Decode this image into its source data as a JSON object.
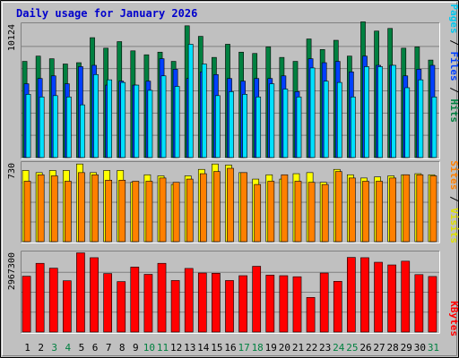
{
  "title": "Daily usage for January 2026",
  "colors": {
    "background": "#c0c0c0",
    "plot_background": "#c0c0c0",
    "title": "#0000ff",
    "hits": "#008040",
    "files": "#0040ff",
    "pages": "#00e0ff",
    "visits": "#ffff00",
    "sites": "#ff8000",
    "kbytes": "#ff0000",
    "weekend_day": "#008040",
    "weekday": "#000000"
  },
  "right_labels": {
    "top": {
      "pages": "Pages",
      "files": "Files",
      "hits": "Hits",
      "sep": " / "
    },
    "middle": {
      "sites": "Sites",
      "visits": "Visits",
      "sep": " / "
    },
    "bottom": {
      "kbytes": "KBytes"
    }
  },
  "chart_data": [
    {
      "type": "bar",
      "name": "top",
      "ymax_label": "10124",
      "ylim": [
        0,
        10124
      ],
      "categories": [
        "1",
        "2",
        "3",
        "4",
        "5",
        "6",
        "7",
        "8",
        "9",
        "10",
        "11",
        "12",
        "13",
        "14",
        "15",
        "16",
        "17",
        "18",
        "19",
        "20",
        "21",
        "22",
        "23",
        "24",
        "25",
        "26",
        "27",
        "28",
        "29",
        "30",
        "31"
      ],
      "weekend_days": [
        3,
        4,
        10,
        11,
        17,
        18,
        24,
        25,
        31
      ],
      "series": [
        {
          "name": "Hits",
          "values": [
            7300,
            7700,
            7500,
            7100,
            7200,
            9100,
            8300,
            8800,
            8100,
            7800,
            8000,
            7300,
            10000,
            9200,
            7600,
            8600,
            8000,
            7900,
            8400,
            7600,
            7300,
            9000,
            8200,
            8900,
            7700,
            10300,
            9600,
            9800,
            8300,
            8400,
            7400
          ]
        },
        {
          "name": "Files",
          "values": [
            5600,
            6000,
            6200,
            5600,
            6900,
            7000,
            5500,
            5800,
            5500,
            5800,
            7500,
            6700,
            6000,
            6500,
            6300,
            6000,
            5800,
            6000,
            6000,
            6200,
            5000,
            7500,
            7200,
            7300,
            6500,
            7700,
            7000,
            7000,
            6200,
            6700,
            7000
          ]
        },
        {
          "name": "Pages",
          "values": [
            4800,
            4600,
            4700,
            4600,
            4000,
            6300,
            5900,
            5700,
            5500,
            5100,
            6200,
            5400,
            8600,
            7100,
            4700,
            5000,
            4800,
            4600,
            5600,
            5200,
            4600,
            6800,
            5800,
            5700,
            4600,
            6900,
            6900,
            7000,
            5300,
            5900,
            4600
          ]
        }
      ]
    },
    {
      "type": "bar",
      "name": "middle",
      "ymax_label": "730",
      "ylim": [
        0,
        730
      ],
      "categories": [
        "1",
        "2",
        "3",
        "4",
        "5",
        "6",
        "7",
        "8",
        "9",
        "10",
        "11",
        "12",
        "13",
        "14",
        "15",
        "16",
        "17",
        "18",
        "19",
        "20",
        "21",
        "22",
        "23",
        "24",
        "25",
        "26",
        "27",
        "28",
        "29",
        "30",
        "31"
      ],
      "series": [
        {
          "name": "Visits",
          "values": [
            660,
            640,
            660,
            660,
            720,
            640,
            660,
            660,
            550,
            620,
            610,
            530,
            610,
            670,
            720,
            710,
            640,
            580,
            620,
            580,
            630,
            640,
            550,
            670,
            620,
            590,
            600,
            610,
            620,
            630,
            620
          ]
        },
        {
          "name": "Sites",
          "values": [
            560,
            620,
            610,
            560,
            640,
            620,
            570,
            570,
            560,
            560,
            590,
            550,
            580,
            630,
            650,
            680,
            640,
            530,
            560,
            620,
            560,
            550,
            530,
            650,
            590,
            560,
            560,
            590,
            620,
            620,
            610
          ]
        }
      ]
    },
    {
      "type": "bar",
      "name": "bottom",
      "ymax_label": "2967300",
      "ylim": [
        0,
        2967300
      ],
      "categories": [
        "1",
        "2",
        "3",
        "4",
        "5",
        "6",
        "7",
        "8",
        "9",
        "10",
        "11",
        "12",
        "13",
        "14",
        "15",
        "16",
        "17",
        "18",
        "19",
        "20",
        "21",
        "22",
        "23",
        "24",
        "25",
        "26",
        "27",
        "28",
        "29",
        "30",
        "31"
      ],
      "series": [
        {
          "name": "KBytes",
          "values": [
            2080000,
            2560000,
            2380000,
            1910000,
            2950000,
            2770000,
            2180000,
            1880000,
            2420000,
            2150000,
            2560000,
            1920000,
            2370000,
            2200000,
            2190000,
            1920000,
            2100000,
            2450000,
            2120000,
            2100000,
            2060000,
            1290000,
            2200000,
            1890000,
            2780000,
            2770000,
            2600000,
            2500000,
            2640000,
            2140000,
            2070000
          ]
        }
      ]
    }
  ]
}
